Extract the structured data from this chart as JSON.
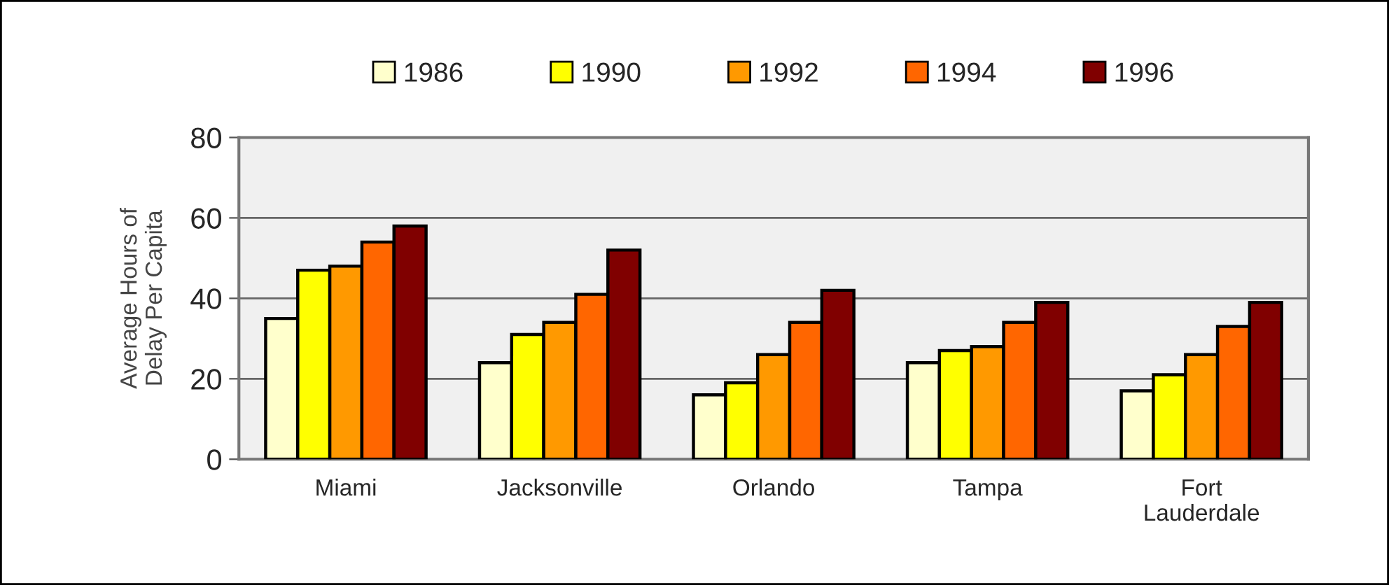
{
  "chart_data": {
    "type": "bar",
    "ylabel": "Average Hours of\nDelay Per Capita",
    "categories": [
      "Miami",
      "Jacksonville",
      "Orlando",
      "Tampa",
      "Fort\nLauderdale"
    ],
    "series": [
      {
        "name": "1986",
        "color": "#ffffcc",
        "values": [
          35,
          24,
          16,
          24,
          17
        ]
      },
      {
        "name": "1990",
        "color": "#ffff00",
        "values": [
          47,
          31,
          19,
          27,
          21
        ]
      },
      {
        "name": "1992",
        "color": "#ff9900",
        "values": [
          48,
          34,
          26,
          28,
          26
        ]
      },
      {
        "name": "1994",
        "color": "#ff6600",
        "values": [
          54,
          41,
          34,
          34,
          33
        ]
      },
      {
        "name": "1996",
        "color": "#800000",
        "values": [
          58,
          52,
          42,
          39,
          39
        ]
      }
    ],
    "ylim": [
      0,
      80
    ],
    "yticks": [
      0,
      20,
      40,
      60,
      80
    ],
    "grid": "y",
    "legend": "top"
  }
}
